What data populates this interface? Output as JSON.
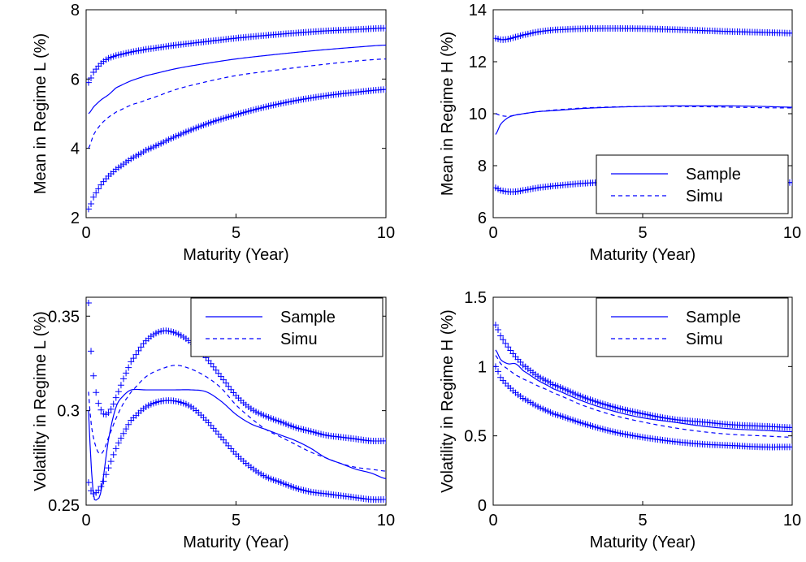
{
  "colors": {
    "series": "#0000ff",
    "axis": "#000000",
    "background": "#ffffff"
  },
  "chart_data": [
    {
      "type": "line",
      "xlabel": "Maturity (Year)",
      "ylabel": "Mean in Regime L (%)",
      "xlim": [
        0,
        10
      ],
      "ylim": [
        2,
        8
      ],
      "xticks": [
        "0",
        "5",
        "10"
      ],
      "yticks": [
        "2",
        "4",
        "6",
        "8"
      ],
      "grid": false,
      "legend": {
        "placement": "bottom-right",
        "entries": [
          "Sample",
          "Simu"
        ]
      },
      "series": [
        {
          "name": "Sample",
          "style": "solid",
          "x": [
            0.08,
            0.25,
            0.5,
            0.75,
            1,
            1.5,
            2,
            3,
            4,
            5,
            6,
            7,
            8,
            9,
            10
          ],
          "y": [
            5.0,
            5.2,
            5.4,
            5.55,
            5.75,
            5.95,
            6.1,
            6.3,
            6.45,
            6.58,
            6.68,
            6.77,
            6.85,
            6.92,
            6.98
          ]
        },
        {
          "name": "Simu",
          "style": "dashed",
          "x": [
            0.08,
            0.25,
            0.5,
            0.75,
            1,
            1.5,
            2,
            3,
            4,
            5,
            6,
            7,
            8,
            9,
            10
          ],
          "y": [
            4.0,
            4.4,
            4.7,
            4.9,
            5.05,
            5.25,
            5.4,
            5.7,
            5.92,
            6.1,
            6.22,
            6.33,
            6.43,
            6.52,
            6.58
          ]
        },
        {
          "style": "plus-markers",
          "x": [
            0.08,
            0.25,
            0.5,
            0.75,
            1,
            1.5,
            2,
            3,
            4,
            5,
            6,
            7,
            8,
            9,
            10
          ],
          "y": [
            5.9,
            6.2,
            6.45,
            6.6,
            6.68,
            6.78,
            6.86,
            6.98,
            7.08,
            7.18,
            7.26,
            7.33,
            7.39,
            7.43,
            7.47
          ]
        },
        {
          "style": "plus-markers",
          "x": [
            0.08,
            0.25,
            0.5,
            0.75,
            1,
            1.5,
            2,
            3,
            4,
            5,
            6,
            7,
            8,
            9,
            10
          ],
          "y": [
            2.25,
            2.6,
            2.95,
            3.2,
            3.4,
            3.7,
            3.95,
            4.35,
            4.7,
            4.97,
            5.2,
            5.38,
            5.52,
            5.62,
            5.7
          ]
        }
      ]
    },
    {
      "type": "line",
      "xlabel": "Maturity (Year)",
      "ylabel": "Mean in Regime H (%)",
      "xlim": [
        0,
        10
      ],
      "ylim": [
        6,
        14
      ],
      "xticks": [
        "0",
        "5",
        "10"
      ],
      "yticks": [
        "6",
        "8",
        "10",
        "12",
        "14"
      ],
      "grid": false,
      "legend": {
        "placement": "bottom-right",
        "entries": [
          "Sample",
          "Simu"
        ]
      },
      "series": [
        {
          "name": "Sample",
          "style": "solid",
          "x": [
            0.08,
            0.25,
            0.5,
            0.75,
            1,
            1.5,
            2,
            3,
            4,
            5,
            6,
            7,
            8,
            9,
            10
          ],
          "y": [
            9.2,
            9.6,
            9.85,
            9.95,
            10.0,
            10.08,
            10.12,
            10.2,
            10.25,
            10.28,
            10.3,
            10.3,
            10.3,
            10.28,
            10.25
          ]
        },
        {
          "name": "Simu",
          "style": "dashed",
          "x": [
            0.08,
            0.25,
            0.5,
            0.75,
            1,
            1.5,
            2,
            3,
            4,
            5,
            6,
            7,
            8,
            9,
            10
          ],
          "y": [
            10.0,
            9.93,
            9.9,
            9.95,
            10.0,
            10.08,
            10.14,
            10.22,
            10.26,
            10.28,
            10.28,
            10.27,
            10.25,
            10.23,
            10.22
          ]
        },
        {
          "style": "plus-markers",
          "x": [
            0.08,
            0.25,
            0.5,
            0.75,
            1,
            1.5,
            2,
            3,
            4,
            5,
            6,
            7,
            8,
            9,
            10
          ],
          "y": [
            12.9,
            12.85,
            12.87,
            12.95,
            13.03,
            13.15,
            13.22,
            13.27,
            13.28,
            13.27,
            13.24,
            13.2,
            13.16,
            13.13,
            13.1
          ]
        },
        {
          "style": "plus-markers",
          "x": [
            0.08,
            0.25,
            0.5,
            0.75,
            1,
            1.5,
            2,
            3,
            4,
            5,
            6,
            7,
            8,
            9,
            10
          ],
          "y": [
            7.15,
            7.05,
            7.0,
            7.0,
            7.05,
            7.15,
            7.22,
            7.32,
            7.37,
            7.38,
            7.38,
            7.37,
            7.36,
            7.35,
            7.35
          ]
        }
      ]
    },
    {
      "type": "line",
      "xlabel": "Maturity (Year)",
      "ylabel": "Volatility in Regime L (%)",
      "xlim": [
        0,
        10
      ],
      "ylim": [
        0.25,
        0.36
      ],
      "xticks": [
        "0",
        "5",
        "10"
      ],
      "yticks": [
        "0.25",
        "0.3",
        "0.35"
      ],
      "yticks_values": [
        0.25,
        0.3,
        0.35
      ],
      "grid": false,
      "legend": {
        "placement": "top-right",
        "entries": [
          "Sample",
          "Simu"
        ]
      },
      "series": [
        {
          "name": "Sample",
          "style": "solid",
          "x": [
            0.08,
            0.15,
            0.25,
            0.35,
            0.5,
            0.75,
            1.0,
            1.25,
            1.5,
            2,
            2.5,
            3,
            3.5,
            4,
            4.5,
            5,
            5.5,
            6,
            6.5,
            7,
            7.5,
            8,
            8.5,
            9,
            9.5,
            10
          ],
          "y": [
            0.3,
            0.275,
            0.255,
            0.253,
            0.258,
            0.285,
            0.302,
            0.308,
            0.311,
            0.311,
            0.311,
            0.311,
            0.311,
            0.31,
            0.305,
            0.298,
            0.293,
            0.29,
            0.287,
            0.284,
            0.28,
            0.275,
            0.272,
            0.269,
            0.267,
            0.264
          ]
        },
        {
          "name": "Simu",
          "style": "dashed",
          "x": [
            0.08,
            0.15,
            0.25,
            0.4,
            0.55,
            0.75,
            1.0,
            1.25,
            1.5,
            2,
            2.5,
            3,
            3.5,
            4,
            4.5,
            5,
            5.5,
            6,
            6.5,
            7,
            7.5,
            8,
            8.5,
            9,
            9.5,
            10
          ],
          "y": [
            0.31,
            0.295,
            0.285,
            0.278,
            0.278,
            0.286,
            0.296,
            0.304,
            0.31,
            0.318,
            0.322,
            0.324,
            0.322,
            0.318,
            0.312,
            0.303,
            0.296,
            0.29,
            0.286,
            0.282,
            0.278,
            0.275,
            0.272,
            0.27,
            0.269,
            0.268
          ]
        },
        {
          "style": "plus-markers",
          "x": [
            0.08,
            0.15,
            0.25,
            0.35,
            0.45,
            0.6,
            0.8,
            1.0,
            1.25,
            1.5,
            2,
            2.5,
            3,
            3.5,
            4,
            4.5,
            5,
            5.5,
            6,
            6.5,
            7,
            7.5,
            8,
            8.5,
            9,
            9.5,
            10
          ],
          "y": [
            0.357,
            0.334,
            0.318,
            0.308,
            0.302,
            0.298,
            0.3,
            0.307,
            0.317,
            0.326,
            0.337,
            0.342,
            0.341,
            0.336,
            0.328,
            0.318,
            0.308,
            0.301,
            0.297,
            0.294,
            0.291,
            0.289,
            0.287,
            0.286,
            0.285,
            0.284,
            0.284
          ]
        },
        {
          "style": "plus-markers",
          "x": [
            0.08,
            0.15,
            0.25,
            0.35,
            0.5,
            0.7,
            1.0,
            1.25,
            1.5,
            2,
            2.5,
            3,
            3.5,
            4,
            4.5,
            5,
            5.5,
            6,
            6.5,
            7,
            7.5,
            8,
            8.5,
            9,
            9.5,
            10
          ],
          "y": [
            0.262,
            0.258,
            0.256,
            0.257,
            0.26,
            0.268,
            0.28,
            0.288,
            0.295,
            0.302,
            0.305,
            0.305,
            0.302,
            0.295,
            0.286,
            0.277,
            0.27,
            0.265,
            0.262,
            0.259,
            0.257,
            0.256,
            0.255,
            0.254,
            0.253,
            0.253
          ]
        }
      ]
    },
    {
      "type": "line",
      "xlabel": "Maturity (Year)",
      "ylabel": "Volatility in Regime H (%)",
      "xlim": [
        0,
        10
      ],
      "ylim": [
        0,
        1.5
      ],
      "xticks": [
        "0",
        "5",
        "10"
      ],
      "yticks": [
        "0",
        "0.5",
        "1",
        "1.5"
      ],
      "yticks_values": [
        0,
        0.5,
        1,
        1.5
      ],
      "grid": false,
      "legend": {
        "placement": "top-right",
        "entries": [
          "Sample",
          "Simu"
        ]
      },
      "series": [
        {
          "name": "Sample",
          "style": "solid",
          "x": [
            0.08,
            0.25,
            0.5,
            0.75,
            1,
            1.5,
            2,
            3,
            4,
            5,
            6,
            7,
            8,
            9,
            10
          ],
          "y": [
            1.12,
            1.05,
            1.02,
            1.02,
            0.97,
            0.9,
            0.84,
            0.75,
            0.68,
            0.63,
            0.6,
            0.57,
            0.55,
            0.54,
            0.53
          ]
        },
        {
          "name": "Simu",
          "style": "dashed",
          "x": [
            0.08,
            0.25,
            0.5,
            0.75,
            1,
            1.5,
            2,
            3,
            4,
            5,
            6,
            7,
            8,
            9,
            10
          ],
          "y": [
            1.08,
            1.02,
            0.98,
            0.94,
            0.91,
            0.86,
            0.81,
            0.72,
            0.65,
            0.6,
            0.56,
            0.53,
            0.51,
            0.5,
            0.49
          ]
        },
        {
          "style": "plus-markers",
          "x": [
            0.08,
            0.25,
            0.5,
            0.75,
            1,
            1.5,
            2,
            3,
            4,
            5,
            6,
            7,
            8,
            9,
            10
          ],
          "y": [
            1.3,
            1.22,
            1.14,
            1.07,
            1.01,
            0.93,
            0.87,
            0.78,
            0.71,
            0.66,
            0.62,
            0.6,
            0.58,
            0.57,
            0.56
          ]
        },
        {
          "style": "plus-markers",
          "x": [
            0.08,
            0.25,
            0.5,
            0.75,
            1,
            1.5,
            2,
            3,
            4,
            5,
            6,
            7,
            8,
            9,
            10
          ],
          "y": [
            1.0,
            0.92,
            0.86,
            0.81,
            0.77,
            0.71,
            0.66,
            0.59,
            0.53,
            0.49,
            0.46,
            0.44,
            0.43,
            0.42,
            0.42
          ]
        }
      ]
    }
  ]
}
